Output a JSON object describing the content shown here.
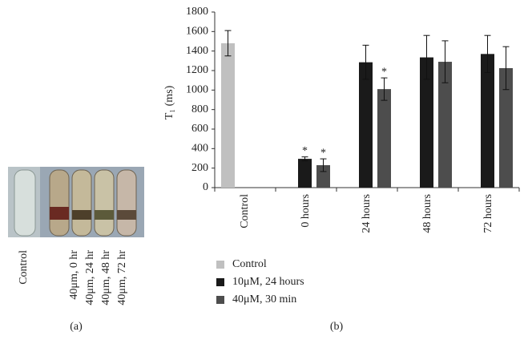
{
  "panel_a": {
    "labels": [
      "Control",
      "40μm, 0 hr",
      "40μm, 24 hr",
      "40μm, 48 hr",
      "40μm, 72 hr"
    ],
    "caption": "(a)"
  },
  "chart_data": {
    "type": "bar",
    "caption": "(b)",
    "y_label": "T₁ (ms)",
    "categories": [
      "Control",
      "0 hours",
      "24 hours",
      "48 hours",
      "72 hours"
    ],
    "series": [
      {
        "name": "Control",
        "color": "#c0c0c0",
        "values": [
          1480,
          null,
          null,
          null,
          null
        ],
        "errors": [
          130,
          null,
          null,
          null,
          null
        ]
      },
      {
        "name": "10μM, 24 hours",
        "color": "#1a1a1a",
        "values": [
          null,
          295,
          1285,
          1335,
          1370
        ],
        "errors": [
          null,
          20,
          175,
          225,
          190
        ]
      },
      {
        "name": "40μM, 30 min",
        "color": "#4d4d4d",
        "values": [
          null,
          230,
          1010,
          1290,
          1225
        ],
        "errors": [
          null,
          65,
          115,
          215,
          220
        ]
      }
    ],
    "annotations": [
      {
        "text": "*",
        "series": 1,
        "category": 1
      },
      {
        "text": "*",
        "series": 2,
        "category": 1
      },
      {
        "text": "*",
        "series": 2,
        "category": 2
      }
    ],
    "ylim": [
      0,
      1800
    ],
    "yticks": [
      0,
      200,
      400,
      600,
      800,
      1000,
      1200,
      1400,
      1600,
      1800
    ]
  }
}
